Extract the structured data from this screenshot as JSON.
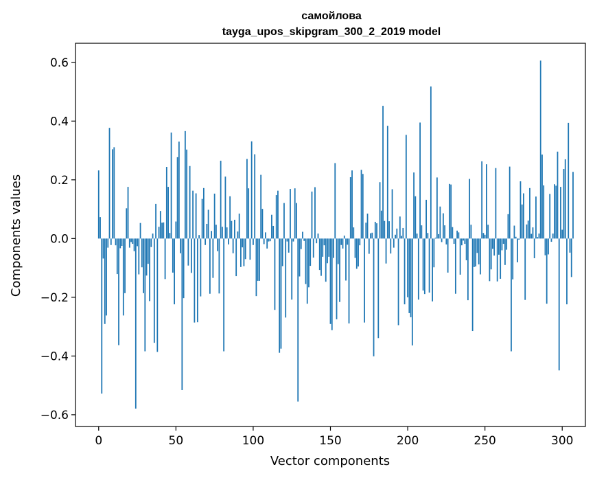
{
  "chart_data": {
    "type": "bar",
    "title": "самойлова",
    "subtitle": "tayga_upos_skipgram_300_2_2019 model",
    "xlabel": "Vector components",
    "ylabel": "Components values",
    "xlim": [
      -15,
      315
    ],
    "ylim": [
      -0.64,
      0.665
    ],
    "xticks": [
      0,
      50,
      100,
      150,
      200,
      250,
      300
    ],
    "xtick_labels": [
      "0",
      "50",
      "100",
      "150",
      "200",
      "250",
      "300"
    ],
    "yticks": [
      -0.6,
      -0.4,
      -0.2,
      0.0,
      0.2,
      0.4,
      0.6
    ],
    "ytick_labels": [
      "−0.6",
      "−0.4",
      "−0.2",
      "0.0",
      "0.2",
      "0.4",
      "0.6"
    ],
    "grid": false,
    "bar_color": "#1f77b4",
    "values": [
      0.232,
      0.073,
      -0.528,
      -0.068,
      -0.291,
      -0.262,
      -0.031,
      0.377,
      -0.022,
      0.304,
      0.311,
      -0.023,
      -0.121,
      -0.363,
      -0.033,
      -0.025,
      -0.262,
      -0.186,
      0.103,
      0.176,
      -0.031,
      -0.012,
      -0.018,
      -0.043,
      -0.579,
      -0.026,
      -0.122,
      0.053,
      -0.098,
      -0.186,
      -0.384,
      -0.126,
      -0.086,
      -0.213,
      -0.029,
      0.017,
      -0.355,
      0.118,
      -0.386,
      0.04,
      0.094,
      0.054,
      0.055,
      -0.138,
      0.244,
      0.176,
      0.019,
      0.361,
      -0.116,
      -0.224,
      0.058,
      0.277,
      0.33,
      -0.05,
      -0.516,
      -0.203,
      0.366,
      0.303,
      -0.092,
      0.247,
      -0.117,
      0.163,
      -0.286,
      0.154,
      -0.285,
      0.012,
      -0.197,
      0.135,
      0.172,
      -0.022,
      0.05,
      0.098,
      -0.188,
      0.026,
      -0.134,
      0.153,
      0.047,
      -0.043,
      -0.187,
      0.265,
      0.04,
      -0.384,
      0.211,
      0.038,
      -0.02,
      0.144,
      0.06,
      -0.05,
      0.064,
      -0.128,
      0.024,
      0.085,
      -0.097,
      -0.03,
      -0.094,
      -0.07,
      0.271,
      0.171,
      -0.072,
      0.331,
      -0.022,
      0.287,
      -0.196,
      -0.144,
      -0.144,
      0.217,
      0.101,
      -0.019,
      0.021,
      -0.034,
      -0.01,
      -0.009,
      0.081,
      0.043,
      -0.243,
      0.148,
      0.163,
      -0.389,
      -0.375,
      -0.094,
      0.121,
      -0.269,
      -0.01,
      -0.048,
      0.169,
      -0.208,
      -0.01,
      0.171,
      0.121,
      -0.555,
      -0.129,
      -0.036,
      0.023,
      -0.008,
      -0.155,
      -0.222,
      -0.166,
      -0.093,
      0.16,
      -0.065,
      0.175,
      -0.016,
      0.017,
      -0.107,
      -0.127,
      -0.062,
      -0.023,
      -0.147,
      -0.084,
      -0.062,
      -0.291,
      -0.312,
      -0.066,
      0.257,
      -0.275,
      -0.087,
      -0.216,
      -0.022,
      -0.034,
      0.01,
      -0.143,
      -0.021,
      -0.289,
      0.209,
      0.232,
      0.038,
      -0.066,
      -0.103,
      -0.095,
      -0.023,
      0.234,
      0.22,
      -0.286,
      0.054,
      0.085,
      -0.052,
      0.018,
      0.02,
      -0.401,
      0.057,
      0.052,
      -0.339,
      0.192,
      0.095,
      0.452,
      0.06,
      -0.085,
      0.384,
      0.059,
      -0.051,
      0.168,
      -0.031,
      0.013,
      0.034,
      -0.295,
      0.075,
      0.009,
      0.036,
      -0.224,
      0.353,
      -0.2,
      -0.254,
      -0.268,
      -0.364,
      0.225,
      0.144,
      0.017,
      -0.208,
      0.395,
      0.045,
      -0.177,
      -0.189,
      0.132,
      0.019,
      -0.184,
      0.518,
      -0.214,
      -0.098,
      0.003,
      0.208,
      0.015,
      0.109,
      -0.012,
      0.086,
      0.045,
      -0.02,
      -0.116,
      0.186,
      0.184,
      0.039,
      -0.018,
      -0.188,
      0.027,
      0.021,
      -0.123,
      -0.023,
      -0.007,
      -0.018,
      -0.074,
      -0.21,
      0.203,
      0.047,
      -0.315,
      -0.097,
      -0.095,
      -0.049,
      -0.088,
      -0.122,
      0.263,
      0.019,
      0.013,
      0.253,
      0.047,
      -0.145,
      -0.105,
      -0.035,
      -0.058,
      0.24,
      -0.146,
      -0.055,
      -0.137,
      -0.04,
      -0.018,
      -0.09,
      -0.038,
      0.083,
      0.245,
      -0.384,
      -0.139,
      0.044,
      0.006,
      -0.081,
      -0.004,
      0.195,
      0.116,
      0.154,
      -0.209,
      0.048,
      0.061,
      0.172,
      0.016,
      0.038,
      -0.067,
      0.143,
      0.005,
      0.017,
      0.606,
      0.286,
      0.181,
      -0.057,
      -0.222,
      -0.054,
      0.152,
      -0.011,
      0.017,
      0.185,
      0.18,
      0.296,
      -0.449,
      0.176,
      0.03,
      0.237,
      0.27,
      -0.224,
      0.394,
      -0.048,
      -0.131,
      0.227,
      0.0
    ]
  }
}
